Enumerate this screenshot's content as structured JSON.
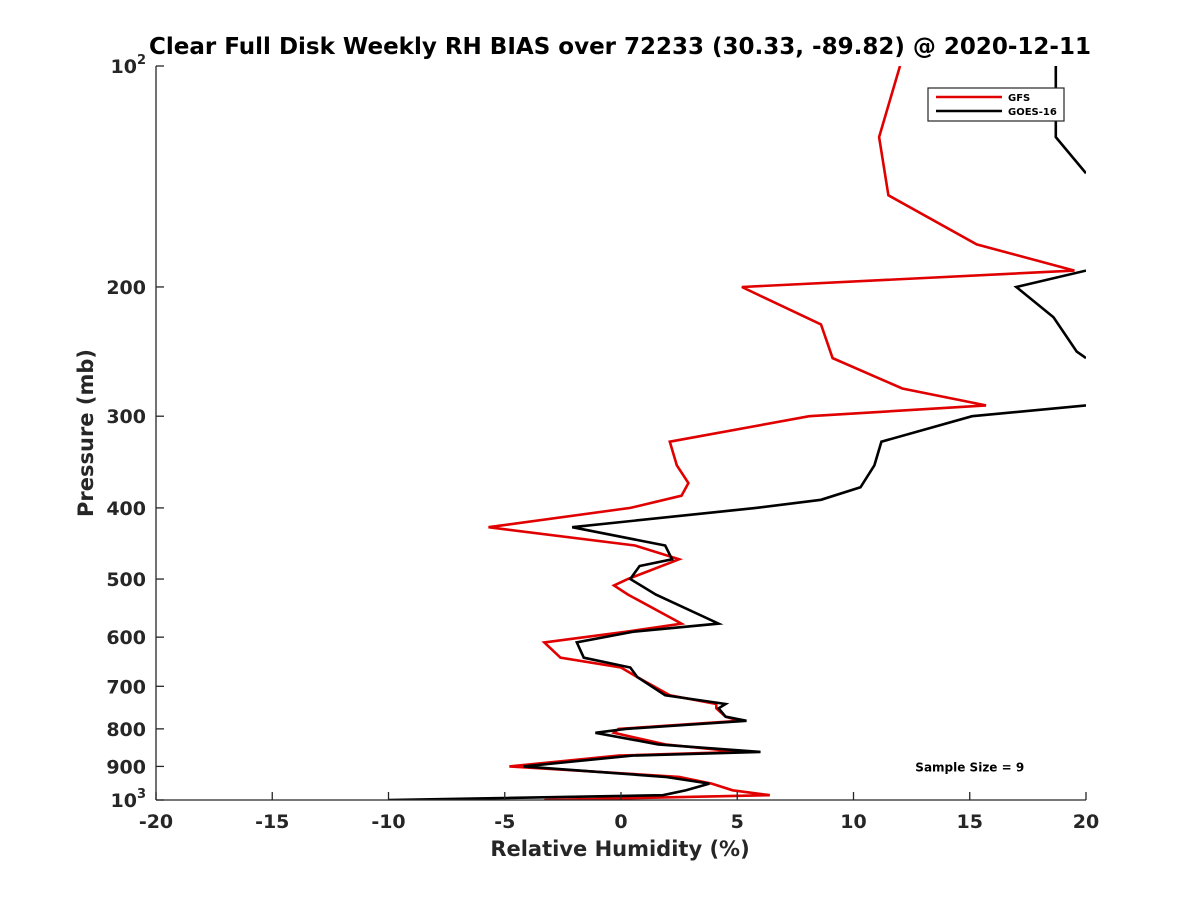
{
  "chart_data": {
    "type": "line",
    "title": "Clear Full Disk Weekly RH BIAS over 72233 (30.33, -89.82) @ 2020-12-11",
    "xlabel": "Relative Humidity (%)",
    "ylabel": "Pressure (mb)",
    "xlim": [
      -20,
      20
    ],
    "ylim": [
      100,
      1000
    ],
    "y_scale": "log",
    "y_reversed": true,
    "grid": false,
    "legend_position": "top-right",
    "x_ticks": [
      -20,
      -15,
      -10,
      -5,
      0,
      5,
      10,
      15,
      20
    ],
    "x_tick_labels": [
      "-20",
      "-15",
      "-10",
      "-5",
      "0",
      "5",
      "10",
      "15",
      "20"
    ],
    "y_ticks": [
      {
        "value": 100,
        "base": "10",
        "exp": "2"
      },
      {
        "value": 200,
        "label": "200"
      },
      {
        "value": 300,
        "label": "300"
      },
      {
        "value": 400,
        "label": "400"
      },
      {
        "value": 500,
        "label": "500"
      },
      {
        "value": 600,
        "label": "600"
      },
      {
        "value": 700,
        "label": "700"
      },
      {
        "value": 800,
        "label": "800"
      },
      {
        "value": 900,
        "label": "900"
      },
      {
        "value": 1000,
        "base": "10",
        "exp": "3"
      }
    ],
    "series": [
      {
        "name": "GFS",
        "color": "#e00000",
        "points": [
          [
            12.0,
            100
          ],
          [
            11.1,
            125
          ],
          [
            11.5,
            150
          ],
          [
            15.3,
            175
          ],
          [
            19.5,
            190
          ],
          [
            5.2,
            200
          ],
          [
            8.6,
            225
          ],
          [
            9.1,
            250
          ],
          [
            12.1,
            275
          ],
          [
            15.7,
            290
          ],
          [
            8.1,
            300
          ],
          [
            2.1,
            325
          ],
          [
            2.4,
            350
          ],
          [
            2.9,
            370
          ],
          [
            2.6,
            385
          ],
          [
            0.4,
            400
          ],
          [
            -5.7,
            425
          ],
          [
            0.6,
            450
          ],
          [
            2.5,
            470
          ],
          [
            0.3,
            500
          ],
          [
            -0.3,
            510
          ],
          [
            0.3,
            525
          ],
          [
            2.6,
            575
          ],
          [
            0.2,
            590
          ],
          [
            -3.3,
            610
          ],
          [
            -2.6,
            640
          ],
          [
            0.0,
            660
          ],
          [
            0.7,
            680
          ],
          [
            2.1,
            720
          ],
          [
            4.1,
            740
          ],
          [
            4.1,
            750
          ],
          [
            4.5,
            770
          ],
          [
            5.1,
            780
          ],
          [
            -0.1,
            800
          ],
          [
            -0.3,
            810
          ],
          [
            1.9,
            840
          ],
          [
            5.1,
            860
          ],
          [
            -0.1,
            870
          ],
          [
            -4.8,
            900
          ],
          [
            2.5,
            930
          ],
          [
            3.9,
            950
          ],
          [
            4.8,
            970
          ],
          [
            6.4,
            985
          ],
          [
            -3.3,
            1000
          ]
        ]
      },
      {
        "name": "GOES-16",
        "color": "#000000",
        "points": [
          [
            18.7,
            100
          ],
          [
            18.7,
            125
          ],
          [
            20.0,
            140
          ],
          [
            null,
            170
          ],
          [
            20.0,
            190
          ],
          [
            17.0,
            200
          ],
          [
            18.6,
            220
          ],
          [
            19.6,
            245
          ],
          [
            20.0,
            250
          ],
          [
            null,
            270
          ],
          [
            20.0,
            290
          ],
          [
            15.1,
            300
          ],
          [
            11.2,
            325
          ],
          [
            10.9,
            350
          ],
          [
            10.3,
            375
          ],
          [
            8.6,
            390
          ],
          [
            5.8,
            400
          ],
          [
            -2.1,
            425
          ],
          [
            1.9,
            450
          ],
          [
            2.2,
            470
          ],
          [
            0.8,
            480
          ],
          [
            0.4,
            500
          ],
          [
            1.5,
            525
          ],
          [
            4.2,
            575
          ],
          [
            0.5,
            590
          ],
          [
            -1.9,
            610
          ],
          [
            -1.6,
            640
          ],
          [
            0.4,
            660
          ],
          [
            0.7,
            680
          ],
          [
            1.9,
            720
          ],
          [
            4.5,
            740
          ],
          [
            4.2,
            750
          ],
          [
            4.5,
            770
          ],
          [
            5.4,
            780
          ],
          [
            0.2,
            800
          ],
          [
            -1.1,
            810
          ],
          [
            1.6,
            840
          ],
          [
            6.0,
            860
          ],
          [
            0.5,
            870
          ],
          [
            -4.2,
            900
          ],
          [
            1.9,
            930
          ],
          [
            3.8,
            950
          ],
          [
            2.8,
            970
          ],
          [
            1.8,
            985
          ],
          [
            -10.0,
            1000
          ]
        ]
      }
    ],
    "annotations": [
      {
        "text": "Sample Size = 9",
        "x": 15.0,
        "y": 900
      }
    ]
  }
}
